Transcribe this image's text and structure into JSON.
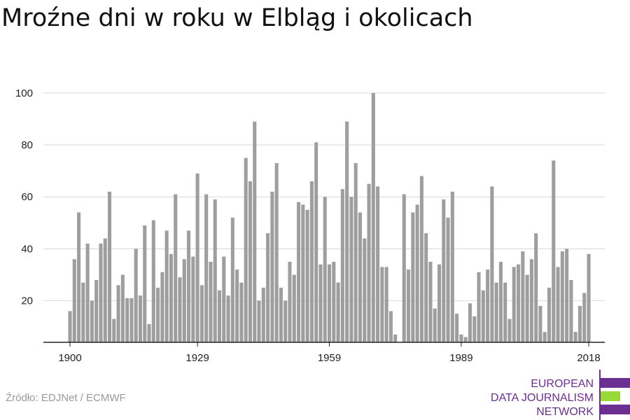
{
  "title": "Mroźne dni w roku w Elbląg i okolicach",
  "source": "Źródło: EDJNet / ECMWF",
  "logo": {
    "lines": [
      "EUROPEAN",
      "DATA JOURNALISM",
      "NETWORK"
    ],
    "colors": [
      "#6b2f92",
      "#9ad93a",
      "#6b2f92"
    ]
  },
  "colors": {
    "bar": "#9e9e9e",
    "grid": "#d9d9d9",
    "axis": "#222222",
    "text": "#222222"
  },
  "chart_data": {
    "type": "bar",
    "title": "Mroźne dni w roku w Elbląg i okolicach",
    "xlabel": "",
    "ylabel": "",
    "ylim": [
      4,
      104
    ],
    "yticks": [
      20,
      40,
      60,
      80,
      100
    ],
    "xticks": [
      1900,
      1929,
      1959,
      1989,
      2018
    ],
    "grid": "horizontal",
    "x": [
      1900,
      1901,
      1902,
      1903,
      1904,
      1905,
      1906,
      1907,
      1908,
      1909,
      1910,
      1911,
      1912,
      1913,
      1914,
      1915,
      1916,
      1917,
      1918,
      1919,
      1920,
      1921,
      1922,
      1923,
      1924,
      1925,
      1926,
      1927,
      1928,
      1929,
      1930,
      1931,
      1932,
      1933,
      1934,
      1935,
      1936,
      1937,
      1938,
      1939,
      1940,
      1941,
      1942,
      1943,
      1944,
      1945,
      1946,
      1947,
      1948,
      1949,
      1950,
      1951,
      1952,
      1953,
      1954,
      1955,
      1956,
      1957,
      1958,
      1959,
      1960,
      1961,
      1962,
      1963,
      1964,
      1965,
      1966,
      1967,
      1968,
      1969,
      1970,
      1971,
      1972,
      1973,
      1974,
      1975,
      1976,
      1977,
      1978,
      1979,
      1980,
      1981,
      1982,
      1983,
      1984,
      1985,
      1986,
      1987,
      1988,
      1989,
      1990,
      1991,
      1992,
      1993,
      1994,
      1995,
      1996,
      1997,
      1998,
      1999,
      2000,
      2001,
      2002,
      2003,
      2004,
      2005,
      2006,
      2007,
      2008,
      2009,
      2010,
      2011,
      2012,
      2013,
      2014,
      2015,
      2016,
      2017,
      2018
    ],
    "values": [
      16,
      36,
      54,
      27,
      42,
      20,
      28,
      42,
      44,
      62,
      13,
      26,
      30,
      21,
      21,
      40,
      22,
      49,
      11,
      51,
      25,
      31,
      47,
      38,
      61,
      29,
      36,
      47,
      37,
      69,
      26,
      61,
      35,
      59,
      24,
      37,
      22,
      52,
      32,
      27,
      75,
      66,
      89,
      20,
      25,
      46,
      62,
      73,
      25,
      20,
      35,
      30,
      58,
      57,
      55,
      66,
      81,
      34,
      60,
      34,
      35,
      27,
      63,
      89,
      60,
      73,
      54,
      44,
      65,
      100,
      64,
      33,
      33,
      16,
      7,
      3,
      61,
      32,
      54,
      57,
      68,
      46,
      35,
      17,
      34,
      59,
      52,
      62,
      15,
      7,
      6,
      19,
      14,
      31,
      24,
      32,
      64,
      27,
      35,
      27,
      13,
      33,
      34,
      39,
      30,
      36,
      46,
      18,
      8,
      25,
      74,
      33,
      39,
      40,
      28,
      8,
      18,
      23,
      38
    ]
  }
}
